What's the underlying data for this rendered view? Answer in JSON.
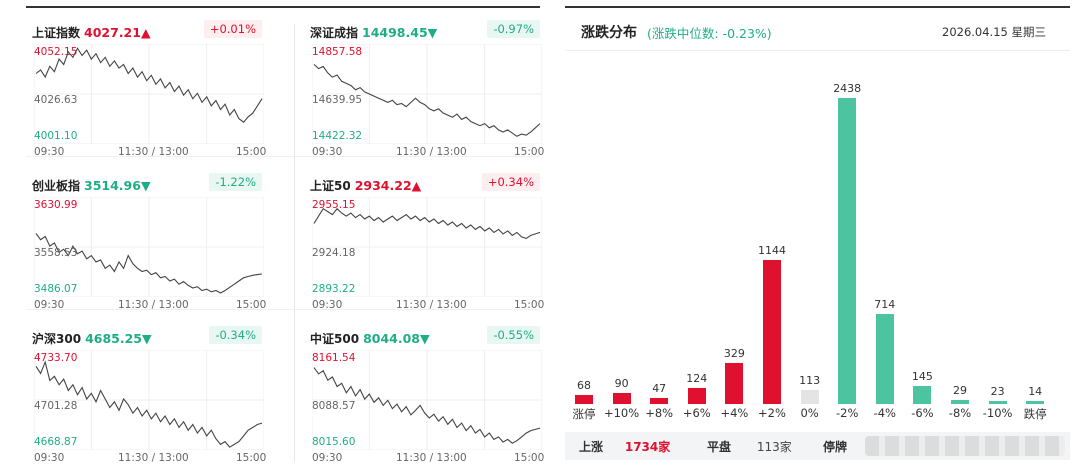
{
  "panels": [
    {
      "name": "上证指数",
      "value": "4027.21",
      "arrow": "▲",
      "change": "+0.01%",
      "dir": "up",
      "y_high": "4052.15",
      "y_mid": "4026.63",
      "y_low": "4001.10",
      "series": [
        4038,
        4040,
        4036,
        4042,
        4039,
        4046,
        4043,
        4050,
        4047,
        4052,
        4048,
        4051,
        4046,
        4049,
        4044,
        4047,
        4042,
        4045,
        4041,
        4043,
        4038,
        4041,
        4036,
        4039,
        4034,
        4037,
        4032,
        4035,
        4030,
        4033,
        4028,
        4031,
        4026,
        4029,
        4024,
        4027,
        4022,
        4025,
        4020,
        4023,
        4018,
        4021,
        4015,
        4018,
        4013,
        4011,
        4014,
        4016,
        4020,
        4024
      ]
    },
    {
      "name": "深证成指",
      "value": "14498.45",
      "arrow": "▼",
      "change": "-0.97%",
      "dir": "dn",
      "y_high": "14857.58",
      "y_mid": "14639.95",
      "y_low": "14422.32",
      "series": [
        14780,
        14760,
        14770,
        14740,
        14720,
        14730,
        14700,
        14690,
        14680,
        14660,
        14670,
        14650,
        14640,
        14630,
        14620,
        14610,
        14600,
        14610,
        14590,
        14595,
        14580,
        14600,
        14620,
        14600,
        14590,
        14570,
        14560,
        14570,
        14550,
        14540,
        14530,
        14545,
        14520,
        14530,
        14510,
        14500,
        14490,
        14500,
        14480,
        14490,
        14470,
        14460,
        14470,
        14455,
        14440,
        14450,
        14445,
        14460,
        14480,
        14500
      ]
    },
    {
      "name": "创业板指",
      "value": "3514.96",
      "arrow": "▼",
      "change": "-1.22%",
      "dir": "dn",
      "y_high": "3630.99",
      "y_mid": "3558.53",
      "y_low": "3486.07",
      "series": [
        3580,
        3570,
        3575,
        3560,
        3565,
        3550,
        3555,
        3545,
        3560,
        3548,
        3552,
        3540,
        3545,
        3535,
        3538,
        3525,
        3530,
        3520,
        3535,
        3525,
        3545,
        3532,
        3525,
        3520,
        3522,
        3515,
        3518,
        3510,
        3512,
        3505,
        3508,
        3500,
        3504,
        3498,
        3494,
        3496,
        3490,
        3492,
        3488,
        3490,
        3486,
        3490,
        3495,
        3500,
        3505,
        3510,
        3512,
        3514,
        3515,
        3516
      ]
    },
    {
      "name": "上证50",
      "value": "2934.22",
      "arrow": "▲",
      "change": "+0.34%",
      "dir": "up",
      "y_high": "2955.15",
      "y_mid": "2924.18",
      "y_low": "2893.22",
      "series": [
        2940,
        2945,
        2950,
        2948,
        2946,
        2950,
        2947,
        2945,
        2947,
        2944,
        2946,
        2943,
        2945,
        2942,
        2944,
        2941,
        2943,
        2945,
        2942,
        2944,
        2946,
        2943,
        2945,
        2942,
        2944,
        2941,
        2943,
        2940,
        2942,
        2939,
        2941,
        2938,
        2940,
        2937,
        2939,
        2936,
        2938,
        2935,
        2937,
        2934,
        2936,
        2933,
        2935,
        2932,
        2934,
        2931,
        2930,
        2932,
        2933,
        2934
      ]
    },
    {
      "name": "沪深300",
      "value": "4685.25",
      "arrow": "▼",
      "change": "-0.34%",
      "dir": "dn",
      "y_high": "4733.70",
      "y_mid": "4701.28",
      "y_low": "4668.87",
      "series": [
        4725,
        4720,
        4728,
        4715,
        4718,
        4712,
        4716,
        4708,
        4712,
        4705,
        4710,
        4702,
        4706,
        4700,
        4708,
        4702,
        4696,
        4700,
        4694,
        4702,
        4698,
        4692,
        4696,
        4690,
        4694,
        4688,
        4692,
        4686,
        4690,
        4684,
        4688,
        4682,
        4686,
        4680,
        4684,
        4678,
        4682,
        4676,
        4680,
        4674,
        4670,
        4672,
        4668,
        4670,
        4672,
        4676,
        4680,
        4682,
        4684,
        4685
      ]
    },
    {
      "name": "中证500",
      "value": "8044.08",
      "arrow": "▼",
      "change": "-0.55%",
      "dir": "dn",
      "y_high": "8161.54",
      "y_mid": "8088.57",
      "y_low": "8015.60",
      "series": [
        8140,
        8130,
        8135,
        8120,
        8125,
        8110,
        8115,
        8100,
        8110,
        8095,
        8105,
        8090,
        8098,
        8085,
        8092,
        8080,
        8088,
        8075,
        8082,
        8070,
        8078,
        8065,
        8072,
        8080,
        8068,
        8060,
        8066,
        8055,
        8062,
        8050,
        8058,
        8045,
        8052,
        8040,
        8048,
        8036,
        8042,
        8030,
        8036,
        8026,
        8030,
        8022,
        8026,
        8020,
        8024,
        8030,
        8036,
        8040,
        8042,
        8044
      ]
    }
  ],
  "x_ticks": [
    "09:30",
    "11:30 / 13:00",
    "15:00"
  ],
  "dist": {
    "title": "涨跌分布",
    "subtitle": "(涨跌中位数: -0.23%)",
    "date": "2026.04.15 星期三",
    "summary": {
      "up_label": "上涨",
      "up_value": "1734家",
      "flat_label": "平盘",
      "flat_value": "113家",
      "halt_label": "停牌"
    }
  },
  "chart_data": {
    "type": "bar",
    "title": "涨跌分布",
    "categories": [
      "涨停",
      "+10%",
      "+8%",
      "+6%",
      "+4%",
      "+2%",
      "0%",
      "-2%",
      "-4%",
      "-6%",
      "-8%",
      "-10%",
      "跌停"
    ],
    "values": [
      68,
      90,
      47,
      124,
      329,
      1144,
      113,
      2438,
      714,
      145,
      29,
      23,
      14
    ],
    "colors": {
      "up": "#e0102f",
      "flat": "#e4e4e4",
      "down": "#4dc4a0"
    }
  }
}
